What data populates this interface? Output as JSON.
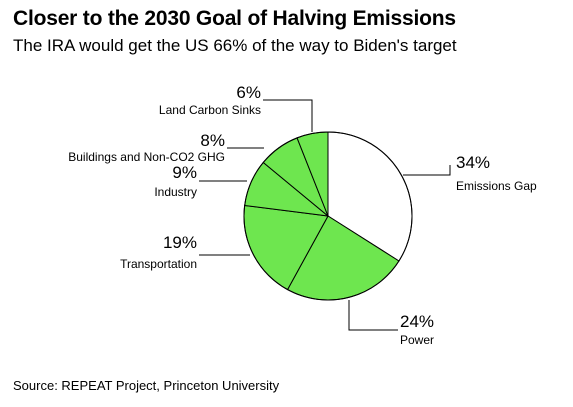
{
  "chart_data": {
    "type": "pie",
    "title": "Closer to the 2030 Goal of Halving Emissions",
    "subtitle": "The IRA would get the US 66% of the way to Biden's target",
    "source": "Source: REPEAT Project, Princeton University",
    "slices": [
      {
        "name": "Emissions Gap",
        "value": 34,
        "label": "34%",
        "color": "#ffffff"
      },
      {
        "name": "Power",
        "value": 24,
        "label": "24%",
        "color": "#6ee64f"
      },
      {
        "name": "Transportation",
        "value": 19,
        "label": "19%",
        "color": "#6ee64f"
      },
      {
        "name": "Industry",
        "value": 9,
        "label": "9%",
        "color": "#6ee64f"
      },
      {
        "name": "Buildings and Non-CO2 GHG",
        "value": 8,
        "label": "8%",
        "color": "#6ee64f"
      },
      {
        "name": "Land Carbon Sinks",
        "value": 6,
        "label": "6%",
        "color": "#6ee64f"
      }
    ],
    "slice_stroke": "#000000"
  }
}
